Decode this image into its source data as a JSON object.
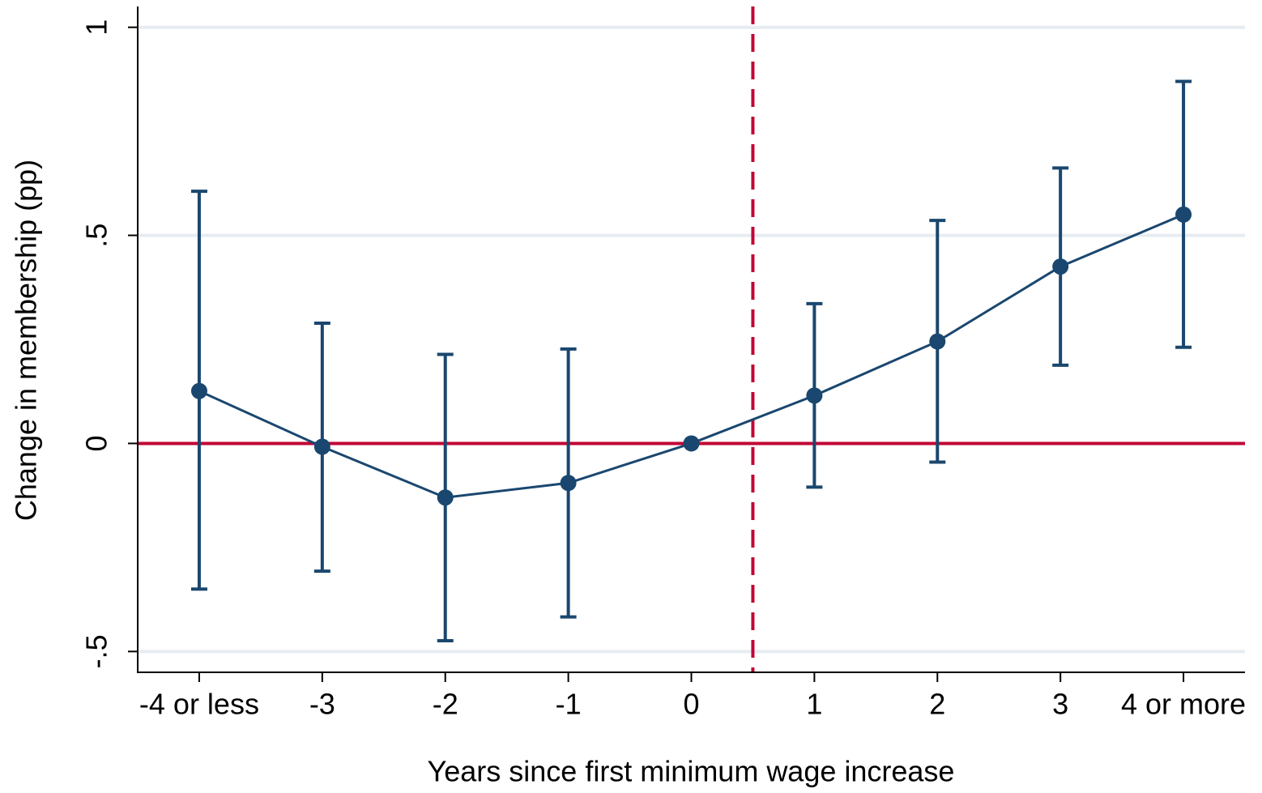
{
  "chart_data": {
    "type": "line",
    "x_label": "Years since first minimum wage increase",
    "y_label": "Change in membership (pp)",
    "categories": [
      "-4 or less",
      "-3",
      "-2",
      "-1",
      "0",
      "1",
      "2",
      "3",
      "4 or more"
    ],
    "series": [
      {
        "color": "#1a476f",
        "values": [
          0.126,
          -0.008,
          -0.13,
          -0.095,
          0,
          0.115,
          0.245,
          0.425,
          0.55
        ],
        "lower": [
          -0.35,
          -0.307,
          -0.474,
          -0.417,
          null,
          -0.105,
          -0.045,
          0.188,
          0.231
        ],
        "upper": [
          0.606,
          0.289,
          0.214,
          0.227,
          null,
          0.336,
          0.536,
          0.662,
          0.87
        ]
      }
    ],
    "ylim": [
      -0.55,
      1.05
    ],
    "yticks": [
      {
        "value": -0.5,
        "label": "-.5"
      },
      0,
      {
        "value": 0.5,
        "label": ".5"
      },
      1
    ],
    "grid": true,
    "grid_color": "#e6ecf1",
    "hline": {
      "value": 0,
      "color": "#c10534"
    },
    "vline": {
      "position": 4.5,
      "color": "#c10534",
      "dashed": true
    }
  }
}
